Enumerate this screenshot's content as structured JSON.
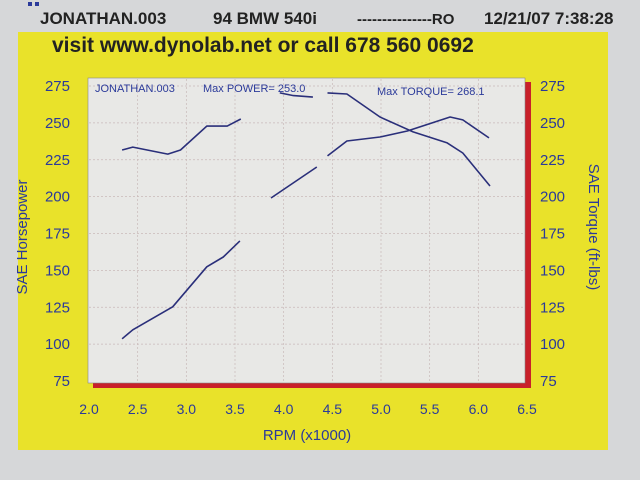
{
  "header": {
    "run_name": "JONATHAN.003",
    "vehicle": "94 BMW 540i",
    "operator": "---------------RO",
    "datetime": "12/21/07 7:38:28"
  },
  "banner": "visit www.dynolab.net or call  678 560 0692",
  "colors": {
    "panel": "#e9e22a",
    "plot_bg": "#e8e8e6",
    "curve": "#2a2f7a",
    "label": "#2b3a9a",
    "shadow": "#c8202a"
  },
  "chart_data": {
    "type": "line",
    "annotations": {
      "run": "JONATHAN.003",
      "max_power": "Max POWER= 253.0",
      "max_torque": "Max TORQUE= 268.1"
    },
    "xlabel": "RPM (x1000)",
    "ylabel": "SAE Horsepower",
    "y2label": "SAE Torque (ft-lbs)",
    "xlim": [
      2.0,
      6.5
    ],
    "ylim": [
      75,
      275
    ],
    "y2lim": [
      75,
      275
    ],
    "xticks": [
      "2.0",
      "2.5",
      "3.0",
      "3.5",
      "4.0",
      "4.5",
      "5.0",
      "5.5",
      "6.0",
      "6.5"
    ],
    "yticks": [
      "75",
      "100",
      "125",
      "150",
      "175",
      "200",
      "225",
      "250",
      "275"
    ],
    "grid": true,
    "series": [
      {
        "segments": [
          [
            [
              2.34,
              103.6
            ],
            [
              2.45,
              109.7
            ],
            [
              2.86,
              125.3
            ],
            [
              3.21,
              152.4
            ],
            [
              3.38,
              159.1
            ],
            [
              3.55,
              170.0
            ]
          ],
          [
            [
              3.87,
              199.1
            ],
            [
              4.34,
              220.1
            ]
          ],
          [
            [
              4.45,
              227.6
            ],
            [
              4.65,
              237.7
            ],
            [
              4.99,
              240.4
            ],
            [
              5.27,
              244.5
            ],
            [
              5.71,
              254.0
            ],
            [
              5.84,
              252.0
            ],
            [
              6.11,
              239.8
            ]
          ]
        ]
      },
      {
        "segments": [
          [
            [
              2.34,
              231.6
            ],
            [
              2.45,
              233.6
            ],
            [
              2.81,
              228.8
            ],
            [
              2.94,
              231.6
            ],
            [
              3.21,
              247.8
            ],
            [
              3.42,
              247.8
            ],
            [
              3.56,
              252.6
            ]
          ],
          [
            [
              3.96,
              270.3
            ],
            [
              4.1,
              268.5
            ],
            [
              4.3,
              267.5
            ]
          ],
          [
            [
              4.45,
              270.3
            ],
            [
              4.65,
              269.6
            ],
            [
              4.99,
              254.0
            ],
            [
              5.33,
              243.9
            ],
            [
              5.68,
              236.4
            ],
            [
              5.84,
              229.6
            ],
            [
              6.12,
              207.2
            ]
          ]
        ]
      }
    ]
  }
}
